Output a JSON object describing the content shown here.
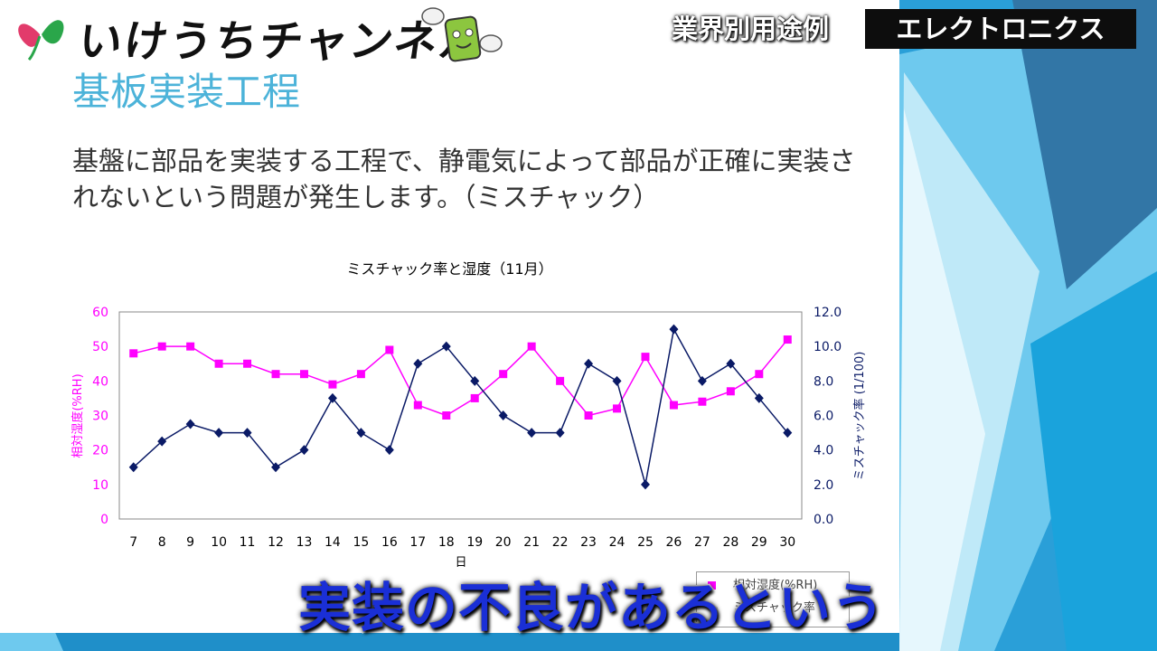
{
  "header": {
    "logo_text": "いけうちチャンネル",
    "category_label": "業界別用途例",
    "category_value": "エレクトロニクス"
  },
  "slide": {
    "title": "基板実装工程",
    "body": "基盤に部品を実装する工程で、静電気によって部品が正確に実装されないという問題が発生します。（ミスチャック）"
  },
  "chart_data": {
    "type": "line",
    "title": "ミスチャック率と湿度（11月）",
    "xlabel": "日",
    "ylabel_left": "相対湿度(%RH)",
    "ylabel_right": "ミスチャック率 (1/100)",
    "x": [
      7,
      8,
      9,
      10,
      11,
      12,
      13,
      14,
      15,
      16,
      17,
      18,
      19,
      20,
      21,
      22,
      23,
      24,
      25,
      26,
      27,
      28,
      29,
      30
    ],
    "ylim_left": [
      0,
      60
    ],
    "ylim_right": [
      0,
      12
    ],
    "yticks_left": [
      "0",
      "10",
      "20",
      "30",
      "40",
      "50",
      "60"
    ],
    "yticks_right": [
      "0.0",
      "2.0",
      "4.0",
      "6.0",
      "8.0",
      "10.0",
      "12.0"
    ],
    "grid": false,
    "series": [
      {
        "name": "相対湿度(%RH)",
        "axis": "left",
        "color": "#ff00ff",
        "marker": "square",
        "values": [
          48,
          50,
          50,
          45,
          45,
          42,
          42,
          39,
          42,
          49,
          33,
          30,
          35,
          42,
          50,
          40,
          30,
          32,
          47,
          33,
          34,
          37,
          42,
          52
        ]
      },
      {
        "name": "ミスチャック率",
        "axis": "right",
        "color": "#0a1a66",
        "marker": "diamond",
        "values": [
          3.0,
          4.5,
          5.5,
          5.0,
          5.0,
          3.0,
          4.0,
          7.0,
          5.0,
          4.0,
          9.0,
          10.0,
          8.0,
          6.0,
          5.0,
          5.0,
          9.0,
          8.0,
          2.0,
          11.0,
          8.0,
          9.0,
          7.0,
          5.0
        ]
      }
    ]
  },
  "caption": "実装の不良があるという",
  "colors": {
    "title": "#4cb3d9",
    "caption": "#1a2fd6",
    "background": "#1f8fc9"
  }
}
